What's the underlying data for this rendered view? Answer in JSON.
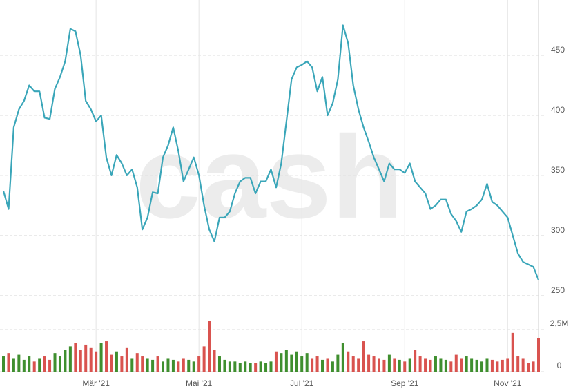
{
  "chart_data": {
    "type": "line",
    "watermark": "cash",
    "categories": [
      null,
      null,
      null,
      null,
      null,
      null,
      null,
      null,
      null,
      null,
      null,
      null,
      null,
      null,
      null,
      null,
      null,
      null,
      "Mär '21",
      null,
      null,
      null,
      null,
      null,
      null,
      null,
      null,
      null,
      null,
      null,
      null,
      null,
      null,
      null,
      null,
      null,
      null,
      null,
      "Mai '21",
      null,
      null,
      null,
      null,
      null,
      null,
      null,
      null,
      null,
      null,
      null,
      null,
      null,
      null,
      null,
      null,
      null,
      null,
      null,
      "Jul '21",
      null,
      null,
      null,
      null,
      null,
      null,
      null,
      null,
      null,
      null,
      null,
      null,
      null,
      null,
      null,
      null,
      null,
      null,
      null,
      "Sep '21",
      null,
      null,
      null,
      null,
      null,
      null,
      null,
      null,
      null,
      null,
      null,
      null,
      null,
      null,
      null,
      null,
      null,
      null,
      null,
      "Nov '21",
      null,
      null,
      null,
      null,
      null,
      null
    ],
    "series": [
      {
        "color": "#3aa6b9",
        "values": [
          337,
          322,
          390,
          405,
          412,
          425,
          420,
          420,
          398,
          397,
          422,
          432,
          445,
          472,
          470,
          450,
          412,
          405,
          395,
          400,
          365,
          350,
          367,
          360,
          350,
          355,
          340,
          305,
          315,
          336,
          335,
          365,
          375,
          390,
          370,
          345,
          355,
          365,
          350,
          325,
          305,
          295,
          315,
          315,
          320,
          335,
          345,
          348,
          348,
          335,
          345,
          345,
          355,
          340,
          360,
          395,
          430,
          440,
          442,
          445,
          440,
          420,
          432,
          400,
          410,
          430,
          475,
          460,
          425,
          405,
          390,
          378,
          365,
          355,
          345,
          360,
          355,
          355,
          352,
          360,
          345,
          340,
          335,
          322,
          325,
          330,
          330,
          318,
          312,
          303,
          320,
          322,
          325,
          330,
          343,
          328,
          325,
          320,
          315,
          300,
          285,
          278,
          276,
          274,
          263
        ]
      },
      {
        "type": "bar",
        "axis": "y2",
        "up_color": "#3f8f2f",
        "down_color": "#d9534f",
        "values": [
          0.9,
          1.1,
          0.8,
          1.0,
          0.7,
          0.9,
          0.6,
          0.8,
          0.9,
          0.7,
          1.1,
          0.9,
          1.3,
          1.5,
          1.7,
          1.3,
          1.6,
          1.4,
          1.2,
          1.7,
          1.8,
          1.0,
          1.2,
          0.9,
          1.4,
          0.8,
          1.1,
          0.9,
          0.8,
          0.7,
          0.9,
          0.6,
          0.8,
          0.7,
          0.6,
          0.8,
          0.7,
          0.6,
          0.9,
          1.5,
          3.0,
          1.3,
          0.9,
          0.7,
          0.6,
          0.6,
          0.5,
          0.6,
          0.5,
          0.5,
          0.6,
          0.5,
          0.6,
          1.2,
          1.1,
          1.3,
          1.0,
          1.2,
          0.9,
          1.1,
          0.8,
          0.9,
          0.7,
          0.8,
          0.6,
          1.0,
          1.7,
          1.2,
          0.9,
          0.8,
          1.8,
          1.0,
          0.9,
          0.8,
          0.7,
          1.0,
          0.8,
          0.7,
          0.6,
          0.8,
          1.3,
          0.9,
          0.8,
          0.7,
          0.9,
          0.8,
          0.7,
          0.6,
          1.0,
          0.8,
          0.9,
          0.8,
          0.7,
          0.6,
          0.8,
          0.7,
          0.6,
          0.7,
          0.8,
          2.3,
          0.9,
          0.8,
          0.5,
          0.6,
          2.0
        ]
      }
    ],
    "ylim": [
      243,
      496
    ],
    "yticks": [
      250,
      300,
      350,
      400,
      450
    ],
    "y2lim": [
      0,
      3.4
    ],
    "y2ticks": [
      0,
      {
        "value": 2.5,
        "label": "2,5M"
      }
    ],
    "grid": true
  }
}
